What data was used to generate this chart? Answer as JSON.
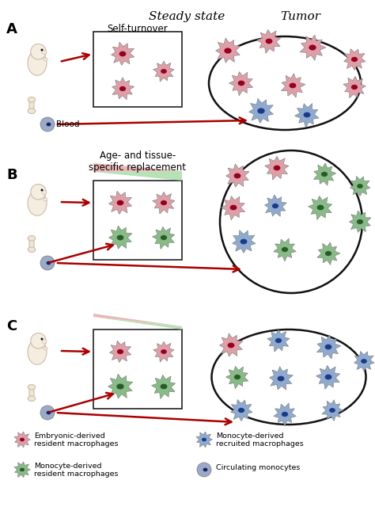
{
  "bg_color": "#FFFFFF",
  "arrow_color": "#AA0000",
  "embryo_body_color": "#F5EDE0",
  "embryo_edge_color": "#CCBBAA",
  "bone_color": "#EDE8D5",
  "bone_edge_color": "#CCBBAA",
  "monocyte_body_color": "#9AAAC8",
  "monocyte_nucleus_color": "#1A2060",
  "macro_embryo_outer": "#DDA0A8",
  "macro_embryo_inner": "#990020",
  "macro_mono_res_outer": "#88BB88",
  "macro_mono_res_inner": "#2A5A2A",
  "macro_recruited_outer": "#90AACE",
  "macro_recruited_inner": "#1A3A8A",
  "triangle_pink_color": "#E8AAAA",
  "triangle_green_color": "#AADDAA",
  "panel_A_label": "A",
  "panel_B_label": "B",
  "panel_C_label": "C",
  "title_steady": "Steady state",
  "title_tumor": "Tumor",
  "panel_A_subtitle": "Self-turnover",
  "panel_B_subtitle": "Age- and tissue-\nspecific replacement",
  "blood_label": "Blood",
  "leg1": "Embryonic-derived\nresident macrophages",
  "leg2": "Monocyte-derived\nresident macrophages",
  "leg3": "Monocyte-derived\nrecruited macrophages",
  "leg4": "Circulating monocytes"
}
